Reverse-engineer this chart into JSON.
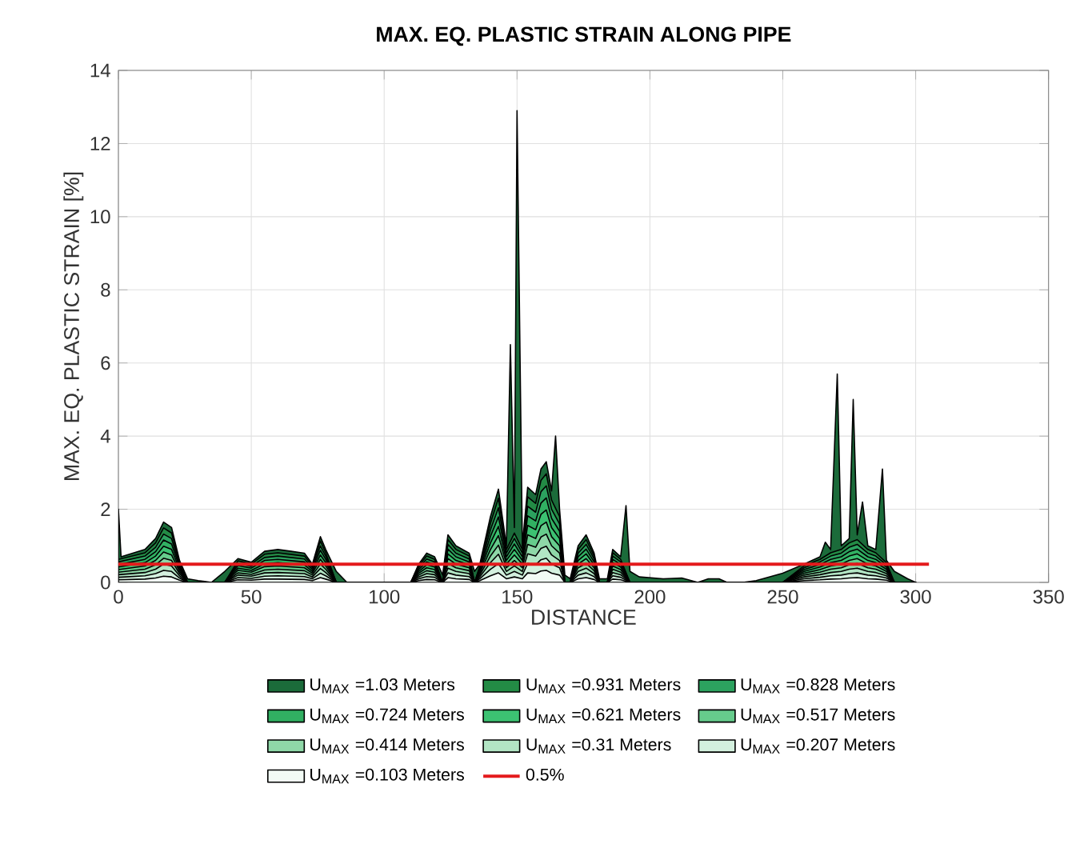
{
  "chart_data": {
    "type": "area",
    "title": "MAX. EQ. PLASTIC STRAIN ALONG PIPE",
    "xlabel": "DISTANCE",
    "ylabel": "MAX. EQ. PLASTIC STRAIN [%]",
    "xlim": [
      0,
      350
    ],
    "ylim": [
      0,
      14
    ],
    "xticks": [
      0,
      50,
      100,
      150,
      200,
      250,
      300,
      350
    ],
    "yticks": [
      0,
      2,
      4,
      6,
      8,
      10,
      12,
      14
    ],
    "grid": true,
    "legend": "bottom",
    "series": [
      {
        "name": "U$_{MAX}$ =1.03 Meters",
        "color": "#1b6b3a",
        "x": [
          0,
          1,
          10,
          14,
          17,
          20,
          23,
          26,
          30,
          35,
          40,
          45,
          50,
          55,
          60,
          65,
          70,
          73,
          76,
          78,
          82,
          86,
          110,
          113,
          116,
          119,
          122,
          124,
          127,
          132,
          134,
          136,
          140,
          143,
          146,
          147.5,
          149,
          150,
          152,
          154,
          157,
          159,
          161,
          163,
          164.5,
          166,
          168,
          170,
          173,
          176,
          179,
          181,
          184,
          186,
          189,
          191,
          192.5,
          196,
          205,
          212,
          218,
          222,
          226,
          229,
          235,
          240,
          250,
          258,
          264,
          266,
          268,
          270.5,
          272,
          275,
          276.5,
          278,
          280,
          282,
          285,
          287.5,
          289,
          292,
          297,
          300
        ],
        "values": [
          2.0,
          0.7,
          0.9,
          1.2,
          1.65,
          1.5,
          0.6,
          0.1,
          0.05,
          0.0,
          0.3,
          0.65,
          0.55,
          0.85,
          0.9,
          0.85,
          0.8,
          0.5,
          1.25,
          0.9,
          0.3,
          0.0,
          0.0,
          0.5,
          0.8,
          0.7,
          0.2,
          1.3,
          1.0,
          0.8,
          0.3,
          0.5,
          1.8,
          2.55,
          1.0,
          6.5,
          1.5,
          12.9,
          1.0,
          2.6,
          2.4,
          3.1,
          3.3,
          2.5,
          4.0,
          2.0,
          0.2,
          0.1,
          1.0,
          1.3,
          0.8,
          0.1,
          0.1,
          0.9,
          0.7,
          2.1,
          0.3,
          0.15,
          0.1,
          0.12,
          0.0,
          0.1,
          0.1,
          0.0,
          0.0,
          0.05,
          0.25,
          0.5,
          0.7,
          1.1,
          0.9,
          5.7,
          1.0,
          1.2,
          5.0,
          1.3,
          2.2,
          1.0,
          0.9,
          3.1,
          0.6,
          0.3,
          0.1,
          0.0
        ]
      },
      {
        "name": "U$_{MAX}$ =0.931 Meters",
        "color": "#238b45",
        "x": [
          0,
          10,
          14,
          17,
          20,
          23,
          26,
          40,
          45,
          50,
          55,
          60,
          70,
          73,
          76,
          78,
          82,
          110,
          113,
          116,
          119,
          122,
          124,
          127,
          132,
          134,
          136,
          140,
          143,
          146,
          149,
          152,
          154,
          157,
          159,
          161,
          163,
          166,
          168,
          170,
          173,
          176,
          179,
          181,
          184,
          186,
          189,
          192.5,
          250,
          258,
          264,
          268,
          272,
          275,
          278,
          282,
          285,
          289,
          292,
          300
        ],
        "values": [
          0.63,
          0.81,
          1.08,
          1.49,
          1.35,
          0.54,
          0,
          0,
          0.59,
          0.5,
          0.77,
          0.81,
          0.72,
          0.45,
          1.13,
          0.81,
          0,
          0,
          0.45,
          0.72,
          0.63,
          0,
          1.17,
          0.9,
          0.72,
          0,
          0.45,
          1.62,
          2.3,
          0.9,
          1.35,
          0.9,
          2.34,
          2.16,
          2.79,
          2.97,
          2.25,
          1.8,
          0,
          0,
          0.9,
          1.17,
          0.72,
          0,
          0,
          0.81,
          0.63,
          0,
          0,
          0.45,
          0.63,
          0.81,
          0.9,
          1.08,
          1.17,
          0.9,
          0.81,
          0.54,
          0,
          0
        ]
      },
      {
        "name": "U$_{MAX}$ =0.828 Meters",
        "color": "#2ca25f",
        "x": [
          0,
          10,
          14,
          17,
          20,
          23,
          26,
          40,
          45,
          50,
          55,
          60,
          70,
          73,
          76,
          78,
          82,
          110,
          113,
          116,
          119,
          122,
          124,
          127,
          132,
          134,
          136,
          140,
          143,
          146,
          149,
          152,
          154,
          157,
          159,
          161,
          163,
          166,
          168,
          170,
          173,
          176,
          179,
          181,
          184,
          186,
          189,
          192.5,
          250,
          258,
          264,
          268,
          272,
          275,
          278,
          282,
          285,
          289,
          292,
          300
        ],
        "values": [
          0.56,
          0.72,
          0.96,
          1.32,
          1.2,
          0.48,
          0,
          0,
          0.52,
          0.44,
          0.68,
          0.72,
          0.64,
          0.4,
          1.0,
          0.72,
          0,
          0,
          0.4,
          0.64,
          0.56,
          0,
          1.04,
          0.8,
          0.64,
          0,
          0.4,
          1.44,
          2.04,
          0.8,
          1.2,
          0.8,
          2.08,
          1.92,
          2.48,
          2.64,
          2.0,
          1.6,
          0,
          0,
          0.8,
          1.04,
          0.64,
          0,
          0,
          0.72,
          0.56,
          0,
          0,
          0.4,
          0.56,
          0.72,
          0.8,
          0.96,
          1.04,
          0.8,
          0.72,
          0.48,
          0,
          0
        ]
      },
      {
        "name": "U$_{MAX}$ =0.724 Meters",
        "color": "#31b062",
        "x": [
          0,
          10,
          14,
          17,
          20,
          23,
          26,
          40,
          45,
          50,
          55,
          60,
          70,
          73,
          76,
          78,
          82,
          110,
          113,
          116,
          119,
          122,
          124,
          127,
          132,
          134,
          136,
          140,
          143,
          146,
          149,
          152,
          154,
          157,
          159,
          161,
          163,
          166,
          168,
          170,
          173,
          176,
          179,
          181,
          184,
          186,
          189,
          192.5,
          250,
          258,
          264,
          268,
          272,
          275,
          278,
          282,
          285,
          289,
          292,
          300
        ],
        "values": [
          0.49,
          0.63,
          0.84,
          1.16,
          1.05,
          0.42,
          0,
          0,
          0.46,
          0.39,
          0.6,
          0.63,
          0.56,
          0.35,
          0.88,
          0.63,
          0,
          0,
          0.35,
          0.56,
          0.49,
          0,
          0.91,
          0.7,
          0.56,
          0,
          0.35,
          1.26,
          1.79,
          0.7,
          1.05,
          0.7,
          1.82,
          1.68,
          2.17,
          2.31,
          1.75,
          1.4,
          0,
          0,
          0.7,
          0.91,
          0.56,
          0,
          0,
          0.63,
          0.49,
          0,
          0,
          0.35,
          0.49,
          0.63,
          0.7,
          0.84,
          0.91,
          0.7,
          0.63,
          0.42,
          0,
          0
        ]
      },
      {
        "name": "U$_{MAX}$ =0.621 Meters",
        "color": "#3cc272",
        "x": [
          0,
          10,
          14,
          17,
          20,
          23,
          26,
          40,
          45,
          50,
          55,
          60,
          70,
          73,
          76,
          78,
          82,
          110,
          113,
          116,
          119,
          122,
          124,
          127,
          132,
          134,
          136,
          140,
          143,
          146,
          149,
          152,
          154,
          157,
          159,
          161,
          163,
          166,
          168,
          170,
          173,
          176,
          179,
          181,
          184,
          186,
          189,
          192.5,
          250,
          258,
          264,
          268,
          272,
          275,
          278,
          282,
          285,
          289,
          292,
          300
        ],
        "values": [
          0.42,
          0.54,
          0.72,
          0.99,
          0.9,
          0.36,
          0,
          0,
          0.39,
          0.33,
          0.51,
          0.54,
          0.48,
          0.3,
          0.75,
          0.54,
          0,
          0,
          0.3,
          0.48,
          0.42,
          0,
          0.78,
          0.6,
          0.48,
          0,
          0.3,
          1.08,
          1.53,
          0.6,
          0.9,
          0.6,
          1.56,
          1.44,
          1.86,
          1.98,
          1.5,
          1.2,
          0,
          0,
          0.6,
          0.78,
          0.48,
          0,
          0,
          0.54,
          0.42,
          0,
          0,
          0.3,
          0.42,
          0.54,
          0.6,
          0.72,
          0.78,
          0.6,
          0.54,
          0.36,
          0,
          0
        ]
      },
      {
        "name": "U$_{MAX}$ =0.517 Meters",
        "color": "#66cc8c",
        "x": [
          0,
          10,
          14,
          17,
          20,
          23,
          26,
          40,
          45,
          50,
          55,
          60,
          70,
          73,
          76,
          78,
          82,
          110,
          113,
          116,
          119,
          122,
          124,
          127,
          132,
          134,
          136,
          140,
          143,
          146,
          149,
          152,
          154,
          157,
          159,
          161,
          163,
          166,
          168,
          170,
          173,
          176,
          179,
          181,
          184,
          186,
          189,
          192.5,
          250,
          258,
          264,
          268,
          272,
          275,
          278,
          282,
          285,
          289,
          292,
          300
        ],
        "values": [
          0.35,
          0.45,
          0.6,
          0.83,
          0.75,
          0.3,
          0,
          0,
          0.33,
          0.28,
          0.43,
          0.45,
          0.4,
          0.25,
          0.63,
          0.45,
          0,
          0,
          0.25,
          0.4,
          0.35,
          0,
          0.65,
          0.5,
          0.4,
          0,
          0.25,
          0.9,
          1.28,
          0.5,
          0.75,
          0.5,
          1.3,
          1.2,
          1.55,
          1.65,
          1.25,
          1.0,
          0,
          0,
          0.5,
          0.65,
          0.4,
          0,
          0,
          0.45,
          0.35,
          0,
          0,
          0.25,
          0.35,
          0.45,
          0.5,
          0.6,
          0.65,
          0.5,
          0.45,
          0.3,
          0,
          0
        ]
      },
      {
        "name": "U$_{MAX}$ =0.414 Meters",
        "color": "#8fd8a8",
        "x": [
          0,
          10,
          14,
          17,
          20,
          23,
          26,
          40,
          45,
          50,
          55,
          60,
          70,
          73,
          76,
          78,
          82,
          110,
          113,
          116,
          119,
          122,
          124,
          127,
          132,
          134,
          136,
          140,
          143,
          146,
          149,
          152,
          154,
          157,
          159,
          161,
          163,
          166,
          168,
          170,
          173,
          176,
          179,
          181,
          184,
          186,
          189,
          192.5,
          250,
          258,
          264,
          268,
          272,
          275,
          278,
          282,
          285,
          289,
          292,
          300
        ],
        "values": [
          0.28,
          0.36,
          0.48,
          0.66,
          0.6,
          0.24,
          0,
          0,
          0.26,
          0.22,
          0.34,
          0.36,
          0.32,
          0.2,
          0.5,
          0.36,
          0,
          0,
          0.2,
          0.32,
          0.28,
          0,
          0.52,
          0.4,
          0.32,
          0,
          0.2,
          0.72,
          1.02,
          0.4,
          0.6,
          0.4,
          1.04,
          0.96,
          1.24,
          1.32,
          1.0,
          0.8,
          0,
          0,
          0.4,
          0.52,
          0.32,
          0,
          0,
          0.36,
          0.28,
          0,
          0,
          0.2,
          0.28,
          0.36,
          0.4,
          0.48,
          0.52,
          0.4,
          0.36,
          0.24,
          0,
          0
        ]
      },
      {
        "name": "U$_{MAX}$ =0.31 Meters",
        "color": "#b2e5c4",
        "x": [
          0,
          10,
          14,
          17,
          20,
          23,
          26,
          40,
          45,
          50,
          55,
          60,
          70,
          73,
          76,
          78,
          82,
          110,
          113,
          116,
          119,
          122,
          124,
          127,
          132,
          134,
          136,
          140,
          143,
          146,
          149,
          152,
          154,
          157,
          159,
          161,
          163,
          166,
          168,
          170,
          173,
          176,
          179,
          181,
          184,
          186,
          189,
          192.5,
          250,
          258,
          264,
          268,
          272,
          275,
          278,
          282,
          285,
          289,
          292,
          300
        ],
        "values": [
          0.21,
          0.27,
          0.36,
          0.5,
          0.45,
          0.18,
          0,
          0,
          0.2,
          0.17,
          0.26,
          0.27,
          0.24,
          0.15,
          0.38,
          0.27,
          0,
          0,
          0.15,
          0.24,
          0.21,
          0,
          0.39,
          0.3,
          0.24,
          0,
          0.15,
          0.54,
          0.77,
          0.3,
          0.45,
          0.3,
          0.78,
          0.72,
          0.93,
          0.99,
          0.75,
          0.6,
          0,
          0,
          0.3,
          0.39,
          0.24,
          0,
          0,
          0.27,
          0.21,
          0,
          0,
          0.15,
          0.21,
          0.27,
          0.3,
          0.36,
          0.39,
          0.3,
          0.27,
          0.18,
          0,
          0
        ]
      },
      {
        "name": "U$_{MAX}$ =0.207 Meters",
        "color": "#d3f0de",
        "x": [
          0,
          10,
          14,
          17,
          20,
          23,
          26,
          40,
          45,
          50,
          55,
          60,
          70,
          73,
          76,
          78,
          82,
          110,
          113,
          116,
          119,
          122,
          124,
          127,
          132,
          134,
          136,
          140,
          143,
          146,
          149,
          152,
          154,
          157,
          159,
          161,
          163,
          166,
          168,
          170,
          173,
          176,
          179,
          181,
          184,
          186,
          189,
          192.5,
          250,
          258,
          264,
          268,
          272,
          275,
          278,
          282,
          285,
          289,
          292,
          300
        ],
        "values": [
          0.14,
          0.18,
          0.24,
          0.33,
          0.3,
          0.12,
          0,
          0,
          0.13,
          0.11,
          0.17,
          0.18,
          0.16,
          0.1,
          0.25,
          0.18,
          0,
          0,
          0.1,
          0.16,
          0.14,
          0,
          0.26,
          0.2,
          0.16,
          0,
          0.1,
          0.36,
          0.51,
          0.2,
          0.3,
          0.2,
          0.52,
          0.48,
          0.62,
          0.66,
          0.5,
          0.4,
          0,
          0,
          0.2,
          0.26,
          0.16,
          0,
          0,
          0.18,
          0.14,
          0,
          0,
          0.1,
          0.14,
          0.18,
          0.2,
          0.24,
          0.26,
          0.2,
          0.18,
          0.12,
          0,
          0
        ]
      },
      {
        "name": "U$_{MAX}$ =0.103 Meters",
        "color": "#f2fbf5",
        "x": [
          0,
          10,
          14,
          17,
          20,
          23,
          26,
          40,
          45,
          50,
          55,
          60,
          70,
          73,
          76,
          78,
          82,
          110,
          113,
          116,
          119,
          122,
          124,
          127,
          132,
          134,
          136,
          140,
          143,
          146,
          149,
          152,
          154,
          157,
          159,
          161,
          163,
          166,
          168,
          170,
          173,
          176,
          179,
          181,
          184,
          186,
          189,
          192.5,
          250,
          258,
          264,
          268,
          272,
          275,
          278,
          282,
          285,
          289,
          292,
          300
        ],
        "values": [
          0.07,
          0.09,
          0.12,
          0.17,
          0.15,
          0.06,
          0,
          0,
          0.07,
          0.06,
          0.09,
          0.09,
          0.08,
          0.05,
          0.13,
          0.09,
          0,
          0,
          0.05,
          0.08,
          0.07,
          0,
          0.13,
          0.1,
          0.08,
          0,
          0.05,
          0.18,
          0.26,
          0.1,
          0.15,
          0.1,
          0.26,
          0.24,
          0.31,
          0.33,
          0.25,
          0.2,
          0,
          0,
          0.1,
          0.13,
          0.08,
          0,
          0,
          0.09,
          0.07,
          0,
          0,
          0.05,
          0.07,
          0.09,
          0.1,
          0.12,
          0.13,
          0.1,
          0.09,
          0.06,
          0,
          0
        ]
      },
      {
        "name": "0.5%",
        "type": "line",
        "color": "#e41a1c",
        "x": [
          0,
          305
        ],
        "values": [
          0.5,
          0.5
        ]
      }
    ]
  }
}
